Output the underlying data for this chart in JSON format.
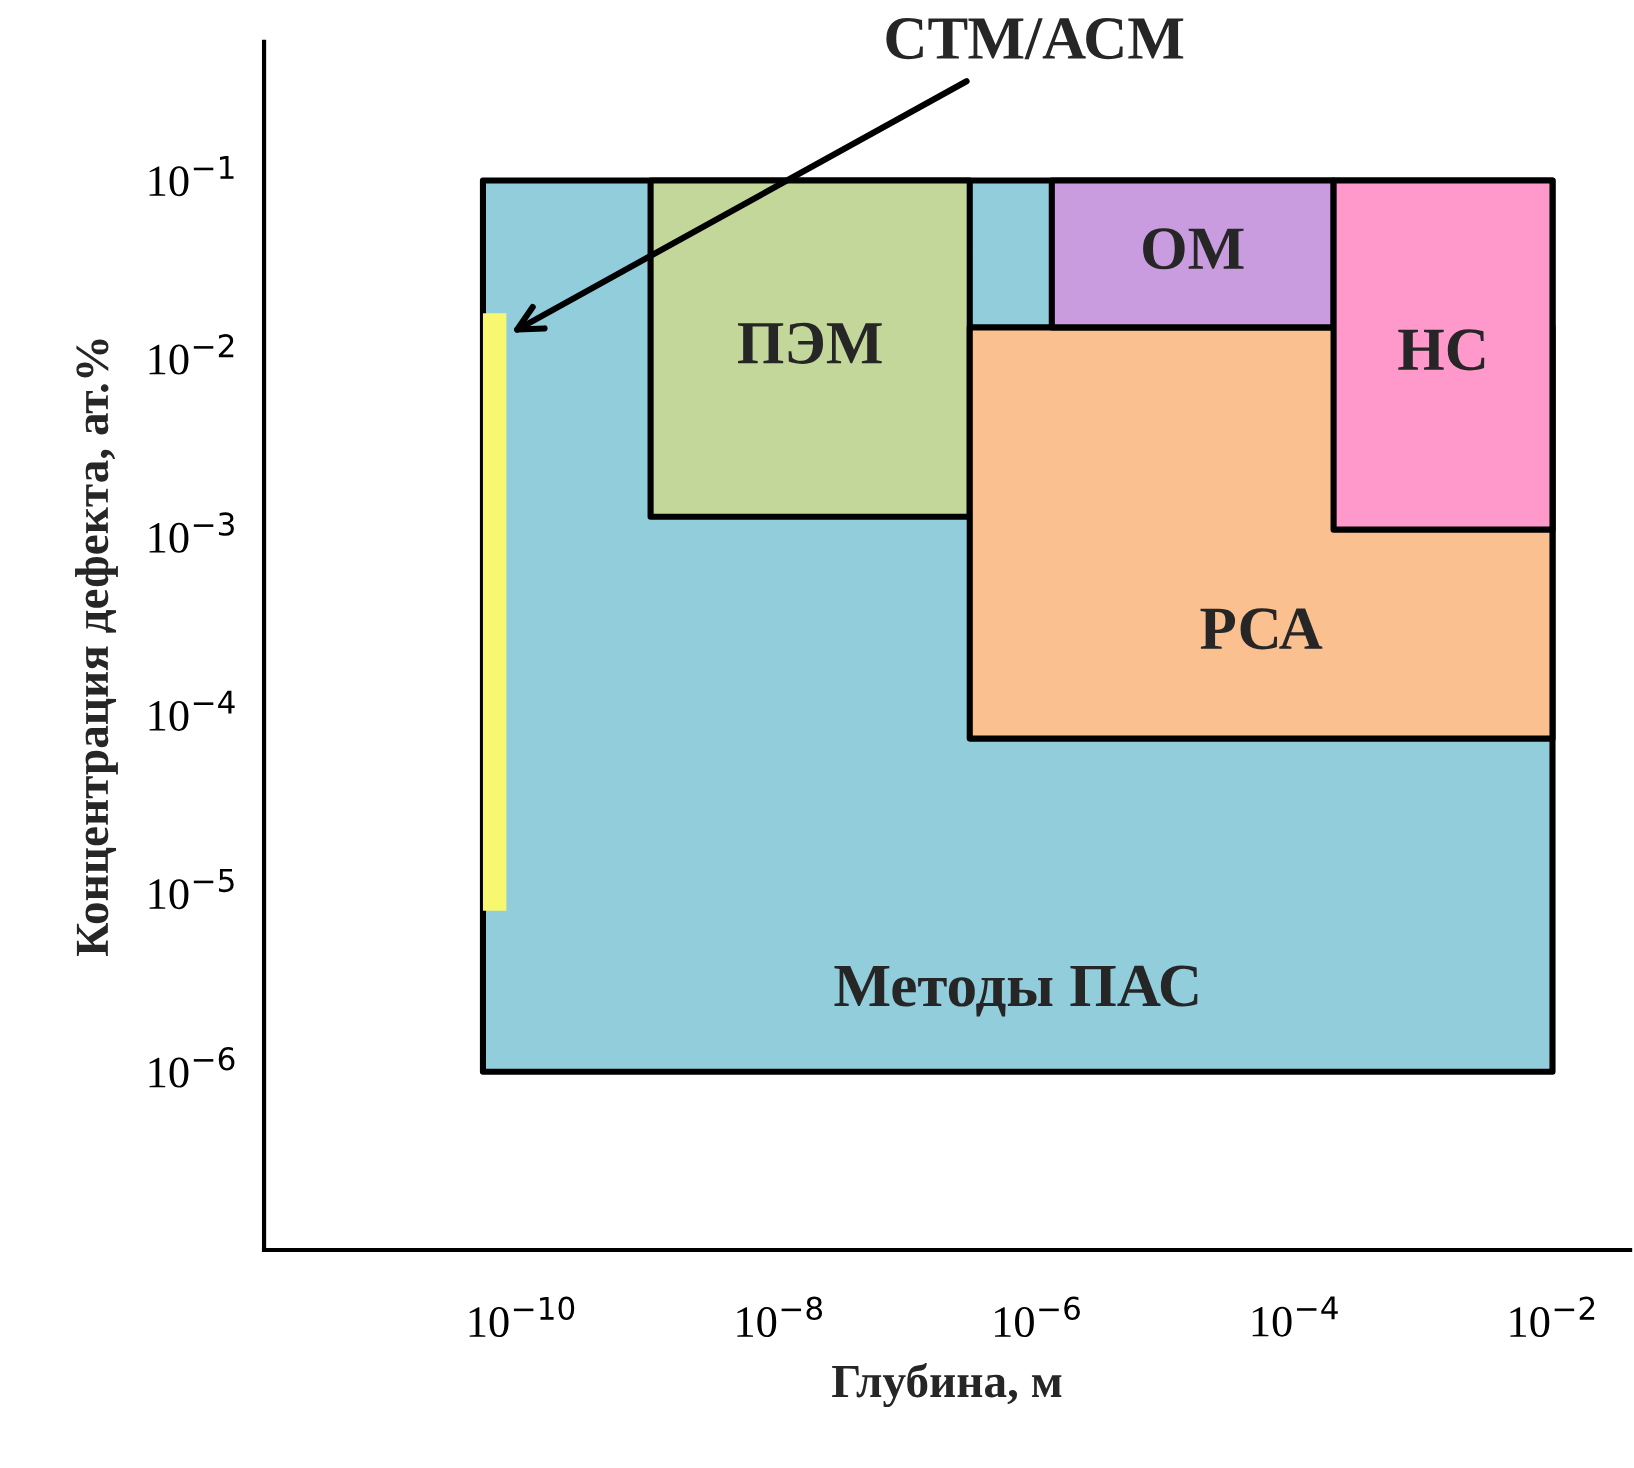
{
  "chart_data": {
    "type": "area",
    "xlabel": "Глубина, м",
    "ylabel": "Концентрация дефекта, ат.%",
    "log": "xy",
    "grid": false,
    "legend": false,
    "xlim": [
      1e-12,
      0.04
    ],
    "ylim": [
      1e-07,
      0.6
    ],
    "xticks": [
      {
        "value": 1e-12,
        "label": null
      },
      {
        "value": 1e-10,
        "label": "10$^{−10}$"
      },
      {
        "value": 1e-08,
        "label": "10$^{−8}$"
      },
      {
        "value": 1e-06,
        "label": "10$^{−6}$"
      },
      {
        "value": 0.0001,
        "label": "10$^{−4}$"
      },
      {
        "value": 0.01,
        "label": "10$^{−2}$"
      }
    ],
    "yticks": [
      {
        "value": 1e-07,
        "label": null
      },
      {
        "value": 1e-06,
        "label": "10$^{−6}$"
      },
      {
        "value": 1e-05,
        "label": "10$^{−5}$"
      },
      {
        "value": 0.0001,
        "label": "10$^{−4}$"
      },
      {
        "value": 0.001,
        "label": "10$^{−3}$"
      },
      {
        "value": 0.01,
        "label": "10$^{−2}$"
      },
      {
        "value": 0.1,
        "label": "10$^{−1}$"
      }
    ],
    "series": [
      {
        "name": "Методы ПАС",
        "color": "#92cddc",
        "x": [
          5e-11,
          0.01,
          0.01,
          5e-11
        ],
        "values": [
          0.1,
          0.1,
          1e-06,
          1e-06
        ]
      },
      {
        "name": "ПЭМ",
        "color": "#c4d79b",
        "x": [
          1e-09,
          3e-07,
          3e-07,
          1e-09
        ],
        "values": [
          0.1,
          0.1,
          0.0013,
          0.0013
        ]
      },
      {
        "name": "РСА",
        "color": "#fac090",
        "x": [
          3e-07,
          0.01,
          0.01,
          3e-07
        ],
        "values": [
          0.015,
          0.015,
          7.4e-05,
          7.4e-05
        ]
      },
      {
        "name": "ОМ",
        "color": "#c99ce0",
        "x": [
          1.3e-06,
          0.0002,
          0.0002,
          1.3e-06
        ],
        "values": [
          0.1,
          0.1,
          0.015,
          0.015
        ]
      },
      {
        "name": "НС",
        "color": "#ff99cc",
        "x": [
          0.0002,
          0.01,
          0.01,
          0.0002
        ],
        "values": [
          0.1,
          0.1,
          0.0011,
          0.0011
        ]
      },
      {
        "color": "#f8f870",
        "x": [
          5e-11,
          7.6e-11,
          7.6e-11,
          5e-11
        ],
        "values": [
          0.018,
          0.018,
          8e-06,
          8e-06
        ]
      }
    ],
    "annotations": [
      "СТМ/АСМ"
    ]
  }
}
